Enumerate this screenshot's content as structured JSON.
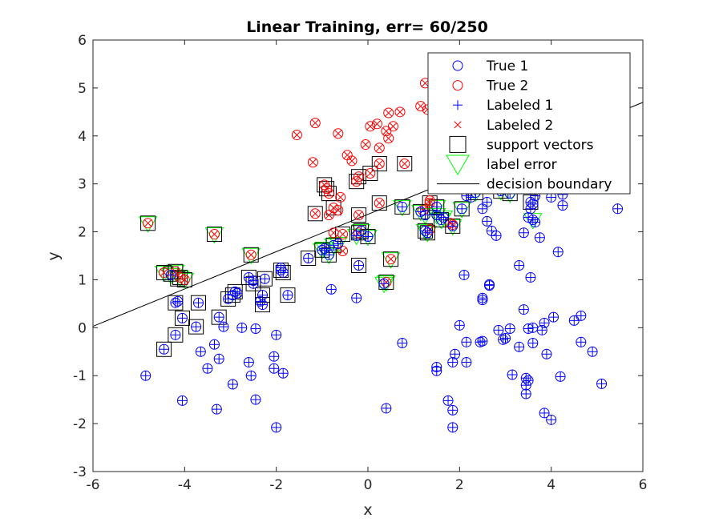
{
  "chart_data": {
    "type": "scatter",
    "title": "Linear Training, err= 60/250",
    "xlabel": "x",
    "ylabel": "y",
    "xlim": [
      -6,
      6
    ],
    "ylim": [
      -3,
      6
    ],
    "xticks": [
      -6,
      -4,
      -2,
      0,
      2,
      4,
      6
    ],
    "yticks": [
      -3,
      -2,
      -1,
      0,
      1,
      2,
      3,
      4,
      5,
      6
    ],
    "legend_location": "top-right",
    "grid": false,
    "colors": {
      "class1": "#0000ff",
      "class2": "#ff0000",
      "support": "#000000",
      "error": "#00ff00",
      "boundary": "#000000"
    },
    "legend": [
      {
        "label": "True 1",
        "marker": "circle",
        "color": "#0000ff"
      },
      {
        "label": "True 2",
        "marker": "circle",
        "color": "#ff0000"
      },
      {
        "label": "Labeled 1",
        "marker": "plus",
        "color": "#0000ff"
      },
      {
        "label": "Labeled 2",
        "marker": "x",
        "color": "#ff0000"
      },
      {
        "label": "support vectors",
        "marker": "square",
        "color": "#000000"
      },
      {
        "label": "label error",
        "marker": "triangle-down",
        "color": "#00ff00"
      },
      {
        "label": "decision boundary",
        "marker": "line",
        "color": "#000000"
      }
    ],
    "decision_boundary": {
      "x": [
        -6,
        6
      ],
      "y": [
        0.03,
        4.7
      ]
    },
    "series": [
      {
        "name": "True 2",
        "points": [
          [
            -1.55,
            4.02
          ],
          [
            -1.15,
            4.27
          ],
          [
            -0.65,
            4.05
          ],
          [
            -0.45,
            3.6
          ],
          [
            -0.35,
            3.48
          ],
          [
            -0.05,
            3.82
          ],
          [
            0.05,
            4.2
          ],
          [
            0.2,
            4.25
          ],
          [
            0.25,
            3.75
          ],
          [
            0.4,
            4.1
          ],
          [
            0.45,
            3.95
          ],
          [
            0.45,
            4.48
          ],
          [
            0.55,
            4.2
          ],
          [
            0.7,
            4.5
          ],
          [
            1.15,
            4.62
          ],
          [
            1.25,
            5.1
          ],
          [
            1.3,
            4.55
          ],
          [
            1.5,
            5.05
          ],
          [
            -1.2,
            3.45
          ],
          [
            -0.95,
            2.98
          ],
          [
            -0.9,
            2.9
          ],
          [
            -0.85,
            2.8
          ],
          [
            -0.75,
            2.5
          ],
          [
            -0.65,
            2.45
          ],
          [
            -0.6,
            2.72
          ],
          [
            -0.25,
            3.05
          ],
          [
            -0.2,
            3.15
          ],
          [
            -0.2,
            2.35
          ],
          [
            0.05,
            3.22
          ],
          [
            0.25,
            3.42
          ],
          [
            0.25,
            2.6
          ],
          [
            0.8,
            3.42
          ],
          [
            1.2,
            2.45
          ],
          [
            1.35,
            2.05
          ],
          [
            1.35,
            2.6
          ],
          [
            1.35,
            2.65
          ],
          [
            -1.15,
            2.38
          ],
          [
            -0.85,
            2.35
          ],
          [
            -0.55,
            1.95
          ],
          [
            -0.75,
            1.98
          ],
          [
            -0.55,
            1.6
          ],
          [
            -0.2,
            1.98
          ],
          [
            -4.8,
            2.18
          ],
          [
            -3.35,
            1.95
          ],
          [
            -2.55,
            1.52
          ],
          [
            -4.45,
            1.15
          ],
          [
            -4.2,
            1.17
          ],
          [
            -4.1,
            1.05
          ],
          [
            -4.0,
            1.0
          ],
          [
            0.5,
            1.43
          ],
          [
            0.4,
            0.95
          ],
          [
            1.85,
            2.15
          ],
          [
            1.8,
            2.18
          ]
        ]
      },
      {
        "name": "True 1",
        "points": [
          [
            2.15,
            2.75
          ],
          [
            2.25,
            2.72
          ],
          [
            2.6,
            2.62
          ],
          [
            2.5,
            2.48
          ],
          [
            3.2,
            2.95
          ],
          [
            3.55,
            2.62
          ],
          [
            3.55,
            2.48
          ],
          [
            3.6,
            2.58
          ],
          [
            3.65,
            2.75
          ],
          [
            3.65,
            2.2
          ],
          [
            3.5,
            2.3
          ],
          [
            4.0,
            2.72
          ],
          [
            4.25,
            2.78
          ],
          [
            4.25,
            2.55
          ],
          [
            5.45,
            2.48
          ],
          [
            2.6,
            2.22
          ],
          [
            2.7,
            2.02
          ],
          [
            2.8,
            1.92
          ],
          [
            3.4,
            1.98
          ],
          [
            3.75,
            1.88
          ],
          [
            4.15,
            1.58
          ],
          [
            3.3,
            1.3
          ],
          [
            3.55,
            1.05
          ],
          [
            2.1,
            1.1
          ],
          [
            2.65,
            0.9
          ],
          [
            2.65,
            0.88
          ],
          [
            2.5,
            0.62
          ],
          [
            2.5,
            0.58
          ],
          [
            3.4,
            0.38
          ],
          [
            4.05,
            0.22
          ],
          [
            3.6,
            0.0
          ],
          [
            3.85,
            0.1
          ],
          [
            3.8,
            -0.05
          ],
          [
            2.85,
            -0.05
          ],
          [
            3.1,
            -0.02
          ],
          [
            3.5,
            -0.02
          ],
          [
            4.5,
            0.15
          ],
          [
            4.65,
            0.25
          ],
          [
            2.0,
            0.05
          ],
          [
            2.15,
            -0.3
          ],
          [
            2.45,
            -0.3
          ],
          [
            2.5,
            -0.28
          ],
          [
            2.95,
            -0.25
          ],
          [
            3.0,
            -0.22
          ],
          [
            3.3,
            -0.4
          ],
          [
            3.6,
            -0.32
          ],
          [
            4.65,
            -0.3
          ],
          [
            3.9,
            -0.55
          ],
          [
            4.9,
            -0.5
          ],
          [
            1.9,
            -0.55
          ],
          [
            2.15,
            -0.72
          ],
          [
            1.85,
            -0.72
          ],
          [
            1.5,
            -0.82
          ],
          [
            1.5,
            -0.9
          ],
          [
            3.15,
            -0.98
          ],
          [
            3.45,
            -1.05
          ],
          [
            3.5,
            -1.1
          ],
          [
            3.45,
            -1.2
          ],
          [
            3.45,
            -1.38
          ],
          [
            4.2,
            -1.02
          ],
          [
            5.1,
            -1.17
          ],
          [
            1.75,
            -1.52
          ],
          [
            1.85,
            -1.72
          ],
          [
            3.85,
            -1.78
          ],
          [
            4.0,
            -1.92
          ],
          [
            1.85,
            -2.08
          ],
          [
            0.4,
            -1.68
          ],
          [
            -4.85,
            -1.0
          ],
          [
            -4.05,
            -1.52
          ],
          [
            -3.65,
            -0.5
          ],
          [
            -3.5,
            -0.85
          ],
          [
            -3.35,
            -0.35
          ],
          [
            -3.25,
            -0.65
          ],
          [
            -2.95,
            -1.18
          ],
          [
            -2.6,
            -0.72
          ],
          [
            -2.55,
            -1.0
          ],
          [
            -2.45,
            -1.5
          ],
          [
            -2.75,
            0.0
          ],
          [
            -2.45,
            -0.02
          ],
          [
            -2.0,
            -0.15
          ],
          [
            -2.05,
            -0.6
          ],
          [
            -2.05,
            -0.85
          ],
          [
            -1.85,
            -0.95
          ],
          [
            -2.0,
            -2.08
          ],
          [
            -3.3,
            -1.7
          ],
          [
            -3.15,
            0.02
          ],
          [
            -4.05,
            0.2
          ],
          [
            -3.75,
            0.02
          ],
          [
            -4.2,
            -0.15
          ],
          [
            -4.45,
            -0.45
          ],
          [
            -3.7,
            0.52
          ],
          [
            -4.2,
            0.52
          ],
          [
            -4.15,
            0.55
          ],
          [
            -3.25,
            0.22
          ],
          [
            -3.05,
            0.6
          ],
          [
            -2.95,
            0.68
          ],
          [
            -2.9,
            0.75
          ],
          [
            -2.85,
            0.72
          ],
          [
            -2.6,
            1.05
          ],
          [
            -2.5,
            0.98
          ],
          [
            -2.5,
            0.92
          ],
          [
            -2.3,
            0.68
          ],
          [
            -2.35,
            0.55
          ],
          [
            -2.3,
            0.48
          ],
          [
            -2.25,
            1.02
          ],
          [
            -1.9,
            1.2
          ],
          [
            -1.9,
            1.25
          ],
          [
            -1.85,
            1.15
          ],
          [
            -1.75,
            0.68
          ],
          [
            -1.3,
            1.45
          ],
          [
            -0.8,
            0.8
          ],
          [
            -0.25,
            0.62
          ],
          [
            0.75,
            -0.32
          ],
          [
            -1.0,
            1.62
          ],
          [
            -0.95,
            1.65
          ],
          [
            -0.85,
            1.52
          ],
          [
            -0.75,
            1.72
          ],
          [
            -0.65,
            1.75
          ],
          [
            -0.25,
            1.92
          ],
          [
            -0.15,
            2.02
          ],
          [
            0.0,
            1.9
          ],
          [
            -0.2,
            1.3
          ],
          [
            0.35,
            0.92
          ],
          [
            0.75,
            2.52
          ],
          [
            1.15,
            2.42
          ],
          [
            1.25,
            2.02
          ],
          [
            1.25,
            2.35
          ],
          [
            1.3,
            1.98
          ],
          [
            1.5,
            2.35
          ],
          [
            1.5,
            2.52
          ],
          [
            1.6,
            2.25
          ],
          [
            1.65,
            2.3
          ],
          [
            1.85,
            2.12
          ],
          [
            2.05,
            2.48
          ],
          [
            2.35,
            2.82
          ],
          [
            2.9,
            2.85
          ],
          [
            3.1,
            2.8
          ],
          [
            3.6,
            2.25
          ],
          [
            -4.3,
            1.1
          ]
        ]
      },
      {
        "name": "support vectors",
        "points": [
          [
            -4.8,
            2.18
          ],
          [
            -3.35,
            1.95
          ],
          [
            -2.55,
            1.52
          ],
          [
            -4.45,
            1.15
          ],
          [
            -4.3,
            1.12
          ],
          [
            -4.2,
            1.17
          ],
          [
            -4.15,
            1.02
          ],
          [
            -4.1,
            1.05
          ],
          [
            -4.0,
            1.0
          ],
          [
            -4.45,
            -0.45
          ],
          [
            -4.05,
            0.2
          ],
          [
            -3.75,
            0.02
          ],
          [
            -4.2,
            -0.15
          ],
          [
            -3.7,
            0.52
          ],
          [
            -4.2,
            0.52
          ],
          [
            -3.25,
            0.22
          ],
          [
            -3.05,
            0.6
          ],
          [
            -2.95,
            0.68
          ],
          [
            -2.9,
            0.75
          ],
          [
            -2.6,
            1.05
          ],
          [
            -2.5,
            0.92
          ],
          [
            -2.3,
            0.68
          ],
          [
            -2.3,
            0.48
          ],
          [
            -2.25,
            1.02
          ],
          [
            -1.9,
            1.2
          ],
          [
            -1.85,
            1.15
          ],
          [
            -1.75,
            0.68
          ],
          [
            -1.3,
            1.45
          ],
          [
            -1.15,
            2.38
          ],
          [
            -1.0,
            1.62
          ],
          [
            -0.85,
            1.52
          ],
          [
            -0.75,
            1.72
          ],
          [
            -0.9,
            2.9
          ],
          [
            -0.95,
            2.98
          ],
          [
            -0.85,
            2.8
          ],
          [
            -0.75,
            2.5
          ],
          [
            -0.55,
            1.95
          ],
          [
            -0.25,
            3.05
          ],
          [
            -0.2,
            3.15
          ],
          [
            -0.2,
            2.35
          ],
          [
            -0.2,
            1.98
          ],
          [
            -0.15,
            2.02
          ],
          [
            0.0,
            1.9
          ],
          [
            -0.2,
            1.3
          ],
          [
            0.05,
            3.22
          ],
          [
            0.25,
            3.42
          ],
          [
            0.25,
            2.6
          ],
          [
            0.4,
            0.95
          ],
          [
            0.5,
            1.43
          ],
          [
            0.8,
            3.42
          ],
          [
            0.75,
            2.52
          ],
          [
            1.15,
            2.42
          ],
          [
            1.25,
            2.02
          ],
          [
            1.3,
            1.98
          ],
          [
            1.35,
            2.6
          ],
          [
            1.5,
            2.52
          ],
          [
            1.6,
            2.25
          ],
          [
            1.85,
            2.12
          ],
          [
            2.05,
            2.48
          ],
          [
            2.35,
            2.82
          ],
          [
            2.9,
            2.85
          ],
          [
            3.1,
            2.8
          ],
          [
            3.55,
            2.62
          ]
        ]
      },
      {
        "name": "label error",
        "points": [
          [
            -4.8,
            2.18
          ],
          [
            -3.35,
            1.95
          ],
          [
            -2.55,
            1.52
          ],
          [
            -4.45,
            1.15
          ],
          [
            -4.2,
            1.17
          ],
          [
            -4.1,
            1.05
          ],
          [
            -4.0,
            1.0
          ],
          [
            -4.3,
            1.1
          ],
          [
            -1.0,
            1.62
          ],
          [
            -0.95,
            1.65
          ],
          [
            -0.85,
            1.52
          ],
          [
            -0.75,
            1.72
          ],
          [
            -0.65,
            1.75
          ],
          [
            -0.25,
            1.92
          ],
          [
            -0.15,
            2.02
          ],
          [
            0.0,
            1.9
          ],
          [
            0.35,
            0.92
          ],
          [
            0.4,
            0.95
          ],
          [
            0.5,
            1.43
          ],
          [
            0.75,
            2.52
          ],
          [
            1.15,
            2.42
          ],
          [
            1.25,
            2.02
          ],
          [
            1.25,
            2.35
          ],
          [
            1.3,
            1.98
          ],
          [
            1.5,
            2.35
          ],
          [
            1.5,
            2.52
          ],
          [
            1.6,
            2.25
          ],
          [
            1.65,
            2.3
          ],
          [
            1.85,
            2.12
          ],
          [
            2.05,
            2.48
          ],
          [
            2.35,
            2.82
          ],
          [
            2.9,
            2.85
          ],
          [
            3.1,
            2.8
          ],
          [
            3.6,
            2.25
          ]
        ]
      }
    ]
  }
}
